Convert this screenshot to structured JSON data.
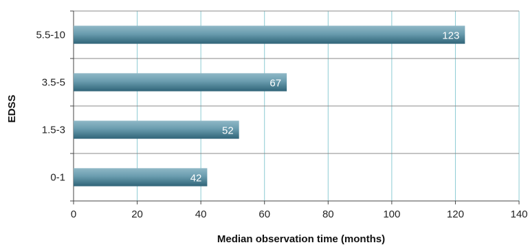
{
  "chart_data": {
    "type": "bar",
    "orientation": "horizontal",
    "categories": [
      "5.5-10",
      "3.5-5",
      "1.5-3",
      "0-1"
    ],
    "values": [
      123,
      67,
      52,
      42
    ],
    "data_labels": [
      "123",
      "67",
      "52",
      "42"
    ],
    "xlabel": "Median observation time (months)",
    "ylabel": "EDSS",
    "xlim": [
      0,
      140
    ],
    "x_ticks": [
      0,
      20,
      40,
      60,
      80,
      100,
      120,
      140
    ],
    "x_tick_labels": [
      "0",
      "20",
      "40",
      "60",
      "80",
      "100",
      "120",
      "140"
    ],
    "grid": "vertical and horizontal",
    "legend": "none",
    "colors": {
      "bar_fill": "#6a9cae",
      "bar_fill_light": "#8fb8c6",
      "bar_fill_dark": "#2f6478",
      "grid_vertical": "#8ccbd3",
      "grid_horizontal": "#888888",
      "axis": "#444444",
      "label_text": "#ffffff"
    }
  }
}
